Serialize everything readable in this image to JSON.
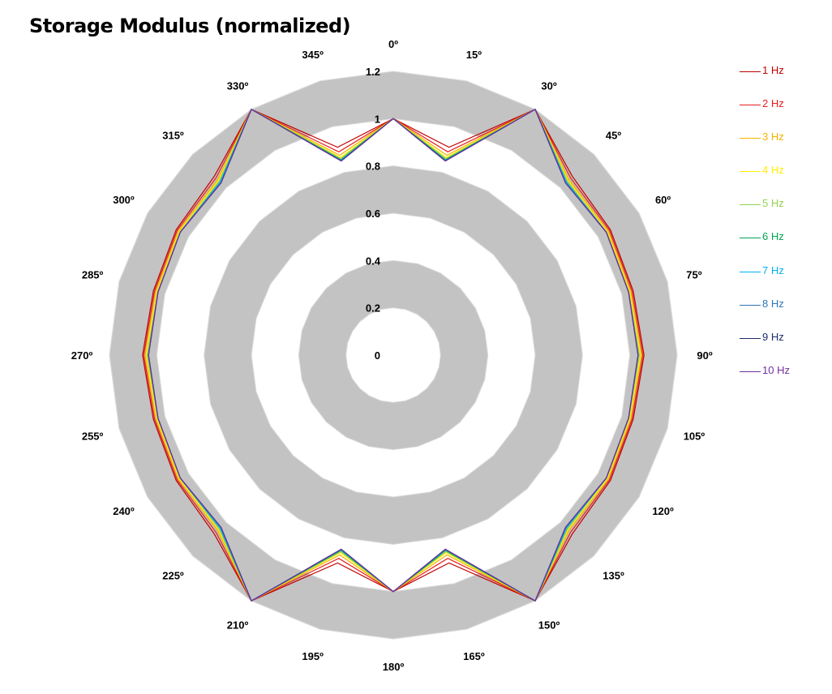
{
  "chart_data": {
    "type": "radar",
    "title": "Storage Modulus (normalized)",
    "angle_labels": [
      "0º",
      "15º",
      "30º",
      "45º",
      "60º",
      "75º",
      "90º",
      "105º",
      "120º",
      "135º",
      "150º",
      "165º",
      "180º",
      "195º",
      "210º",
      "225º",
      "240º",
      "255º",
      "270º",
      "285º",
      "300º",
      "315º",
      "330º",
      "345º"
    ],
    "radial_axis": {
      "min": 0,
      "max": 1.2,
      "tick_labels": [
        "0",
        "0.2",
        "0.4",
        "0.6",
        "0.8",
        "1",
        "1.2"
      ]
    },
    "grid": "alternating gray bands",
    "legend_position": "right",
    "series": [
      {
        "name": "1 Hz",
        "color": "#c00000",
        "values": [
          1,
          0.91,
          1.2,
          1.07,
          1.06,
          1.05,
          1.06,
          1.05,
          1.06,
          1.07,
          1.2,
          0.91,
          1,
          0.91,
          1.2,
          1.07,
          1.06,
          1.05,
          1.06,
          1.05,
          1.06,
          1.07,
          1.2,
          0.91
        ]
      },
      {
        "name": "2 Hz",
        "color": "#e81e1e",
        "values": [
          1,
          0.89,
          1.2,
          1.06,
          1.055,
          1.045,
          1.055,
          1.045,
          1.055,
          1.06,
          1.2,
          0.89,
          1,
          0.89,
          1.2,
          1.06,
          1.055,
          1.045,
          1.055,
          1.045,
          1.055,
          1.06,
          1.2,
          0.89
        ]
      },
      {
        "name": "3 Hz",
        "color": "#f4b400",
        "values": [
          1,
          0.875,
          1.2,
          1.05,
          1.05,
          1.04,
          1.05,
          1.04,
          1.05,
          1.05,
          1.2,
          0.875,
          1,
          0.875,
          1.2,
          1.05,
          1.05,
          1.04,
          1.05,
          1.04,
          1.05,
          1.05,
          1.2,
          0.875
        ]
      },
      {
        "name": "4 Hz",
        "color": "#ffee00",
        "values": [
          1,
          0.865,
          1.2,
          1.045,
          1.045,
          1.035,
          1.045,
          1.035,
          1.045,
          1.045,
          1.2,
          0.865,
          1,
          0.865,
          1.2,
          1.045,
          1.045,
          1.035,
          1.045,
          1.035,
          1.045,
          1.045,
          1.2,
          0.865
        ]
      },
      {
        "name": "5 Hz",
        "color": "#92d050",
        "values": [
          1,
          0.86,
          1.2,
          1.04,
          1.04,
          1.03,
          1.04,
          1.03,
          1.04,
          1.04,
          1.2,
          0.86,
          1,
          0.86,
          1.2,
          1.04,
          1.04,
          1.03,
          1.04,
          1.03,
          1.04,
          1.04,
          1.2,
          0.86
        ]
      },
      {
        "name": "6 Hz",
        "color": "#00a550",
        "values": [
          1,
          0.855,
          1.2,
          1.035,
          1.04,
          1.03,
          1.035,
          1.03,
          1.04,
          1.035,
          1.2,
          0.855,
          1,
          0.855,
          1.2,
          1.035,
          1.04,
          1.03,
          1.035,
          1.03,
          1.04,
          1.035,
          1.2,
          0.855
        ]
      },
      {
        "name": "7 Hz",
        "color": "#00b0f0",
        "values": [
          1,
          0.852,
          1.2,
          1.035,
          1.04,
          1.03,
          1.035,
          1.03,
          1.04,
          1.035,
          1.2,
          0.852,
          1,
          0.852,
          1.2,
          1.035,
          1.04,
          1.03,
          1.035,
          1.03,
          1.04,
          1.035,
          1.2,
          0.852
        ]
      },
      {
        "name": "8 Hz",
        "color": "#2e75b6",
        "values": [
          1,
          0.85,
          1.2,
          1.03,
          1.04,
          1.03,
          1.035,
          1.03,
          1.04,
          1.03,
          1.2,
          0.85,
          1,
          0.85,
          1.2,
          1.03,
          1.04,
          1.03,
          1.035,
          1.03,
          1.04,
          1.03,
          1.2,
          0.85
        ]
      },
      {
        "name": "9 Hz",
        "color": "#1f2d6b",
        "values": [
          1,
          0.85,
          1.2,
          1.03,
          1.04,
          1.03,
          1.035,
          1.03,
          1.04,
          1.03,
          1.2,
          0.85,
          1,
          0.85,
          1.2,
          1.03,
          1.04,
          1.03,
          1.035,
          1.03,
          1.04,
          1.03,
          1.2,
          0.85
        ]
      },
      {
        "name": "10 Hz",
        "color": "#7030a0",
        "values": [
          1,
          0.85,
          1.2,
          1.03,
          1.04,
          1.03,
          1.035,
          1.03,
          1.04,
          1.03,
          1.2,
          0.85,
          1,
          0.85,
          1.2,
          1.03,
          1.04,
          1.03,
          1.035,
          1.03,
          1.04,
          1.03,
          1.2,
          0.85
        ]
      }
    ]
  }
}
